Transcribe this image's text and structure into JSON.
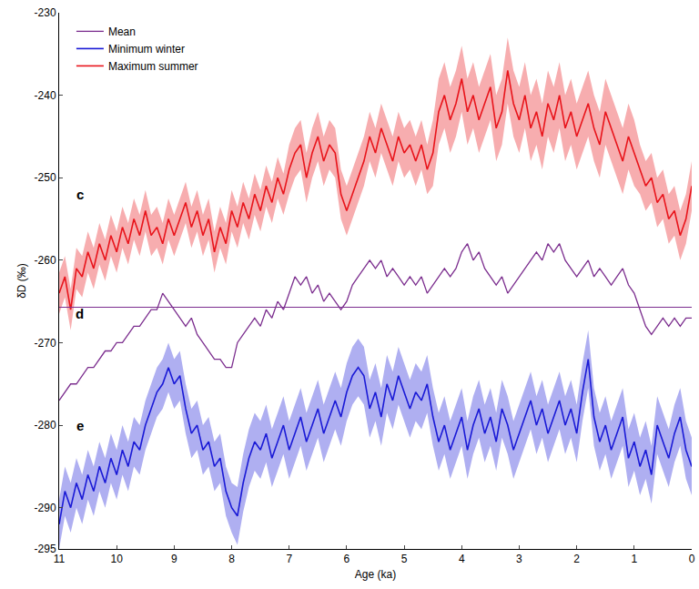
{
  "chart_data": {
    "type": "line",
    "x_label": "Age (ka)",
    "y_label": "δD (‰)",
    "xlim": [
      11,
      0
    ],
    "ylim": [
      -295,
      -230
    ],
    "xticks": [
      11,
      10,
      9,
      8,
      7,
      6,
      5,
      4,
      3,
      2,
      1,
      0
    ],
    "yticks": [
      -230,
      -240,
      -250,
      -260,
      -270,
      -280,
      -290,
      -295
    ],
    "grid": false,
    "legend": "upper left",
    "annotations": [
      {
        "text": "c",
        "x": 10.64,
        "y": -252
      },
      {
        "text": "d",
        "x": 10.64,
        "y": -266.5
      },
      {
        "text": "e",
        "x": 10.64,
        "y": -280
      }
    ],
    "x": [
      11.0,
      10.9,
      10.8,
      10.7,
      10.6,
      10.5,
      10.4,
      10.3,
      10.2,
      10.1,
      10.0,
      9.9,
      9.8,
      9.7,
      9.6,
      9.5,
      9.4,
      9.3,
      9.2,
      9.1,
      9.0,
      8.9,
      8.8,
      8.7,
      8.6,
      8.5,
      8.4,
      8.3,
      8.2,
      8.1,
      8.0,
      7.9,
      7.8,
      7.7,
      7.6,
      7.5,
      7.4,
      7.3,
      7.2,
      7.1,
      7.0,
      6.9,
      6.8,
      6.7,
      6.6,
      6.5,
      6.4,
      6.3,
      6.2,
      6.1,
      6.0,
      5.9,
      5.8,
      5.7,
      5.6,
      5.5,
      5.4,
      5.3,
      5.2,
      5.1,
      5.0,
      4.9,
      4.8,
      4.7,
      4.6,
      4.5,
      4.4,
      4.3,
      4.2,
      4.1,
      4.0,
      3.9,
      3.8,
      3.7,
      3.6,
      3.5,
      3.4,
      3.3,
      3.2,
      3.1,
      3.0,
      2.9,
      2.8,
      2.7,
      2.6,
      2.5,
      2.4,
      2.3,
      2.2,
      2.1,
      2.0,
      1.9,
      1.8,
      1.7,
      1.6,
      1.5,
      1.4,
      1.3,
      1.2,
      1.1,
      1.0,
      0.9,
      0.8,
      0.7,
      0.6,
      0.5,
      0.4,
      0.3,
      0.2,
      0.1,
      0.0
    ],
    "series": [
      {
        "name": "Maximum summer",
        "color": "#e8141b",
        "values": [
          -264,
          -262,
          -266,
          -261,
          -262,
          -259,
          -261,
          -258,
          -260,
          -257,
          -259,
          -256,
          -258,
          -255,
          -257,
          -254,
          -257,
          -256,
          -258,
          -255,
          -257,
          -255,
          -253,
          -256,
          -254,
          -257,
          -255,
          -259,
          -256,
          -258,
          -254,
          -256,
          -253,
          -255,
          -252,
          -254,
          -251,
          -253,
          -250,
          -252,
          -249,
          -247,
          -246,
          -250,
          -247,
          -245,
          -248,
          -246,
          -247,
          -252,
          -254,
          -252,
          -250,
          -248,
          -245,
          -247,
          -244,
          -246,
          -248,
          -245,
          -247,
          -246,
          -248,
          -246,
          -249,
          -247,
          -242,
          -240,
          -243,
          -241,
          -238,
          -242,
          -240,
          -243,
          -241,
          -239,
          -244,
          -242,
          -237,
          -241,
          -243,
          -240,
          -244,
          -242,
          -245,
          -241,
          -243,
          -240,
          -244,
          -242,
          -245,
          -243,
          -241,
          -244,
          -246,
          -242,
          -244,
          -246,
          -248,
          -245,
          -247,
          -249,
          -251,
          -250,
          -253,
          -252,
          -255,
          -254,
          -257,
          -255,
          -251
        ],
        "error": [
          2.5,
          2.5,
          2.5,
          2.5,
          2.5,
          2.5,
          2.5,
          2.5,
          2.5,
          2.5,
          2.5,
          2.5,
          2.5,
          2.5,
          2.5,
          2.5,
          2.5,
          2.5,
          2.5,
          2.5,
          2.5,
          2.5,
          2.5,
          2.5,
          2.5,
          2.5,
          2.5,
          2.5,
          2.5,
          2.5,
          2.5,
          2.5,
          2.5,
          2.5,
          2.5,
          2.5,
          2.5,
          2.5,
          2.5,
          2.5,
          3,
          3,
          3,
          3,
          3,
          3,
          3,
          3,
          3,
          3,
          3,
          3,
          3,
          3,
          3,
          3,
          3,
          3,
          3,
          3,
          3,
          3,
          3,
          3,
          3,
          4,
          4,
          4,
          4,
          4,
          4,
          4,
          4,
          4,
          4,
          4,
          4,
          4,
          4,
          4,
          4,
          4,
          4,
          4,
          4,
          4,
          4,
          4,
          4,
          4,
          4,
          4,
          4,
          4,
          4,
          4,
          4,
          4,
          4,
          4,
          4,
          3,
          3,
          3,
          3,
          3,
          3,
          3,
          3,
          3,
          3
        ]
      },
      {
        "name": "Minimum winter",
        "color": "#1a1ad6",
        "values": [
          -292,
          -288,
          -290,
          -287,
          -289,
          -286,
          -288,
          -285,
          -287,
          -284,
          -286,
          -283,
          -285,
          -282,
          -283,
          -280,
          -278,
          -276,
          -275,
          -273,
          -275,
          -274,
          -278,
          -281,
          -280,
          -283,
          -282,
          -285,
          -284,
          -288,
          -290,
          -291,
          -287,
          -284,
          -282,
          -283,
          -281,
          -284,
          -282,
          -280,
          -283,
          -281,
          -279,
          -282,
          -280,
          -278,
          -281,
          -279,
          -277,
          -279,
          -276,
          -274,
          -273,
          -274,
          -278,
          -276,
          -279,
          -275,
          -277,
          -274,
          -276,
          -278,
          -276,
          -277,
          -275,
          -279,
          -282,
          -280,
          -283,
          -281,
          -279,
          -283,
          -280,
          -278,
          -281,
          -279,
          -282,
          -278,
          -280,
          -283,
          -281,
          -279,
          -277,
          -280,
          -278,
          -281,
          -279,
          -277,
          -280,
          -278,
          -281,
          -276,
          -272,
          -279,
          -282,
          -280,
          -283,
          -281,
          -279,
          -284,
          -282,
          -285,
          -283,
          -286,
          -280,
          -282,
          -284,
          -281,
          -279,
          -283,
          -285
        ],
        "error": [
          3,
          3,
          3,
          3,
          3,
          3,
          3,
          3,
          3,
          3,
          3,
          3,
          3,
          3,
          3,
          3,
          3,
          3,
          3,
          3,
          3,
          3,
          3,
          3,
          3,
          3,
          3,
          3,
          3,
          3,
          3,
          3.5,
          3.5,
          3.5,
          3.5,
          3.5,
          3.5,
          3.5,
          3.5,
          3.5,
          3.5,
          3.5,
          3.5,
          3.5,
          3.5,
          3.5,
          3.5,
          3.5,
          3.5,
          3.5,
          3.5,
          3.5,
          3.5,
          3.5,
          3.5,
          3.5,
          3.5,
          3.5,
          3.5,
          3.5,
          3.5,
          3.5,
          3.5,
          3.5,
          3.5,
          3.5,
          3.5,
          3.5,
          3.5,
          3.5,
          3.5,
          3.5,
          3.5,
          3.5,
          3.5,
          3.5,
          3.5,
          3.5,
          3.5,
          3.5,
          3.5,
          3.5,
          3.5,
          3.5,
          3.5,
          3.5,
          3.5,
          3.5,
          3.5,
          3.5,
          3.5,
          3.5,
          3.5,
          3.5,
          3.5,
          3.5,
          3.5,
          3.5,
          3.5,
          3.5,
          3.5,
          3.5,
          3.5,
          3.5,
          3.5,
          3.5,
          3.5,
          3.5,
          3.5,
          3.5,
          3.5
        ]
      },
      {
        "name": "Mean",
        "color": "#7b2d8e",
        "reference": -265.7,
        "values": [
          -277,
          -276,
          -275,
          -275,
          -274,
          -273,
          -273,
          -272,
          -271,
          -271,
          -270,
          -270,
          -269,
          -268,
          -268,
          -267,
          -266,
          -266,
          -264,
          -265,
          -266,
          -267,
          -268,
          -267,
          -269,
          -270,
          -271,
          -272,
          -272,
          -273,
          -273,
          -270,
          -269,
          -268,
          -267,
          -268,
          -266,
          -267,
          -265,
          -266,
          -264,
          -262,
          -263,
          -262,
          -264,
          -263,
          -265,
          -264,
          -265,
          -266,
          -265,
          -263,
          -262,
          -261,
          -260,
          -261,
          -260,
          -262,
          -261,
          -262,
          -263,
          -262,
          -263,
          -262,
          -264,
          -263,
          -262,
          -261,
          -262,
          -261,
          -259,
          -258,
          -260,
          -259,
          -261,
          -262,
          -263,
          -262,
          -264,
          -263,
          -262,
          -261,
          -260,
          -259,
          -260,
          -258,
          -259,
          -258,
          -260,
          -261,
          -262,
          -261,
          -260,
          -262,
          -261,
          -262,
          -263,
          -262,
          -261,
          -263,
          -264,
          -266,
          -268,
          -269,
          -268,
          -267,
          -268,
          -267,
          -268,
          -267,
          -267
        ]
      }
    ]
  }
}
